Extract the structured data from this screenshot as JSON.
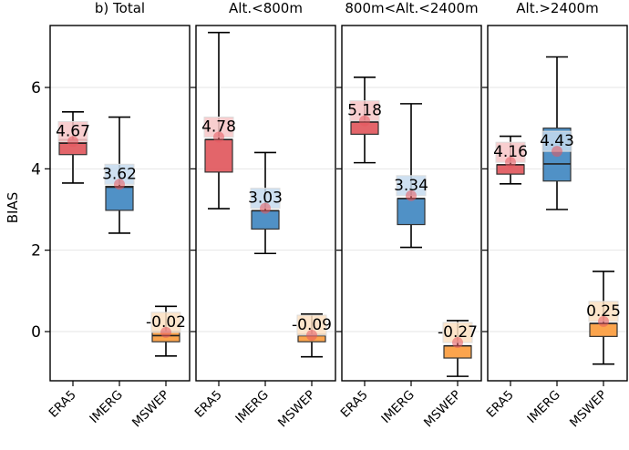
{
  "chart_data": {
    "type": "boxplot",
    "ylabel": "BIAS",
    "ylim": [
      -1.25,
      7.55
    ],
    "yticks": [
      0,
      2,
      4,
      6
    ],
    "grid": "horizontal",
    "categories": [
      "ERA5",
      "IMERG",
      "MSWEP"
    ],
    "colors": {
      "ERA5": "#e0545a",
      "IMERG": "#3d85c0",
      "MSWEP": "#fb9a3a"
    },
    "label_bg_colors": {
      "ERA5": "#f7c5c7",
      "IMERG": "#c6dbef",
      "MSWEP": "#fde0c2"
    },
    "mean_marker_color": "#e8585e",
    "panels": [
      {
        "title": "b) Total",
        "boxes": [
          {
            "category": "ERA5",
            "whislo": 3.65,
            "q1": 4.35,
            "med": 4.63,
            "q3": 4.72,
            "whishi": 5.4,
            "mean": 4.67,
            "mean_label": "4.67"
          },
          {
            "category": "IMERG",
            "whislo": 2.42,
            "q1": 2.98,
            "med": 3.55,
            "q3": 3.57,
            "whishi": 5.27,
            "mean": 3.62,
            "mean_label": "3.62"
          },
          {
            "category": "MSWEP",
            "whislo": -0.6,
            "q1": -0.25,
            "med": -0.1,
            "q3": 0.0,
            "whishi": 0.62,
            "mean": -0.02,
            "mean_label": "-0.02"
          }
        ]
      },
      {
        "title": "Alt.<800m",
        "boxes": [
          {
            "category": "ERA5",
            "whislo": 3.02,
            "q1": 3.92,
            "med": 4.72,
            "q3": 4.72,
            "whishi": 7.35,
            "mean": 4.78,
            "mean_label": "4.78"
          },
          {
            "category": "IMERG",
            "whislo": 1.92,
            "q1": 2.52,
            "med": 2.97,
            "q3": 2.97,
            "whishi": 4.4,
            "mean": 3.03,
            "mean_label": "3.03"
          },
          {
            "category": "MSWEP",
            "whislo": -0.62,
            "q1": -0.25,
            "med": -0.1,
            "q3": -0.07,
            "whishi": 0.43,
            "mean": -0.09,
            "mean_label": "-0.09"
          }
        ]
      },
      {
        "title": "800m<Alt.<2400m",
        "boxes": [
          {
            "category": "ERA5",
            "whislo": 4.15,
            "q1": 4.85,
            "med": 5.15,
            "q3": 5.15,
            "whishi": 6.25,
            "mean": 5.18,
            "mean_label": "5.18"
          },
          {
            "category": "IMERG",
            "whislo": 2.07,
            "q1": 2.63,
            "med": 3.27,
            "q3": 3.27,
            "whishi": 5.6,
            "mean": 3.34,
            "mean_label": "3.34"
          },
          {
            "category": "MSWEP",
            "whislo": -1.1,
            "q1": -0.65,
            "med": -0.35,
            "q3": -0.35,
            "whishi": 0.27,
            "mean": -0.27,
            "mean_label": "-0.27"
          }
        ]
      },
      {
        "title": "Alt.>2400m",
        "boxes": [
          {
            "category": "ERA5",
            "whislo": 3.63,
            "q1": 3.87,
            "med": 4.1,
            "q3": 4.1,
            "whishi": 4.8,
            "mean": 4.16,
            "mean_label": "4.16"
          },
          {
            "category": "IMERG",
            "whislo": 3.0,
            "q1": 3.7,
            "med": 4.12,
            "q3": 5.0,
            "whishi": 6.75,
            "mean": 4.43,
            "mean_label": "4.43"
          },
          {
            "category": "MSWEP",
            "whislo": -0.8,
            "q1": -0.12,
            "med": 0.2,
            "q3": 0.2,
            "whishi": 1.48,
            "mean": 0.25,
            "mean_label": "0.25"
          }
        ]
      }
    ]
  }
}
